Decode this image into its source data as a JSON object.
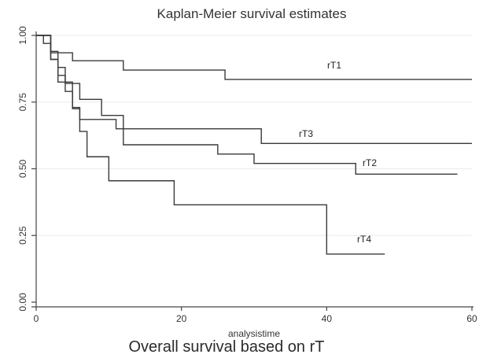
{
  "chart_data": {
    "type": "line",
    "step": true,
    "title": "Kaplan-Meier survival estimates",
    "xlabel": "analysistime",
    "caption": "Overall survival based on rT",
    "xlim": [
      0,
      60
    ],
    "ylim": [
      0,
      1
    ],
    "xticks": [
      "0",
      "20",
      "40",
      "60"
    ],
    "yticks": [
      "0.00",
      "0.25",
      "0.50",
      "0.75",
      "1.00"
    ],
    "grid": true,
    "series": [
      {
        "name": "rT1",
        "points": [
          [
            0,
            1.0
          ],
          [
            2,
            0.935
          ],
          [
            5,
            0.905
          ],
          [
            12,
            0.87
          ],
          [
            26,
            0.835
          ],
          [
            60,
            0.835
          ]
        ]
      },
      {
        "name": "rT3",
        "points": [
          [
            0,
            1.0
          ],
          [
            2,
            0.94
          ],
          [
            3,
            0.88
          ],
          [
            4,
            0.82
          ],
          [
            6,
            0.76
          ],
          [
            9,
            0.7
          ],
          [
            12,
            0.65
          ],
          [
            31,
            0.595
          ],
          [
            60,
            0.595
          ]
        ]
      },
      {
        "name": "rT2",
        "points": [
          [
            0,
            1.0
          ],
          [
            1,
            0.97
          ],
          [
            2,
            0.91
          ],
          [
            3,
            0.85
          ],
          [
            4,
            0.79
          ],
          [
            5,
            0.725
          ],
          [
            6,
            0.685
          ],
          [
            11,
            0.65
          ],
          [
            12,
            0.59
          ],
          [
            25,
            0.555
          ],
          [
            30,
            0.52
          ],
          [
            44,
            0.48
          ],
          [
            58,
            0.48
          ]
        ]
      },
      {
        "name": "rT4",
        "points": [
          [
            0,
            1.0
          ],
          [
            2,
            0.91
          ],
          [
            3,
            0.825
          ],
          [
            5,
            0.73
          ],
          [
            6,
            0.64
          ],
          [
            7,
            0.545
          ],
          [
            10,
            0.455
          ],
          [
            19,
            0.365
          ],
          [
            40,
            0.18
          ],
          [
            48,
            0.18
          ]
        ]
      }
    ]
  }
}
